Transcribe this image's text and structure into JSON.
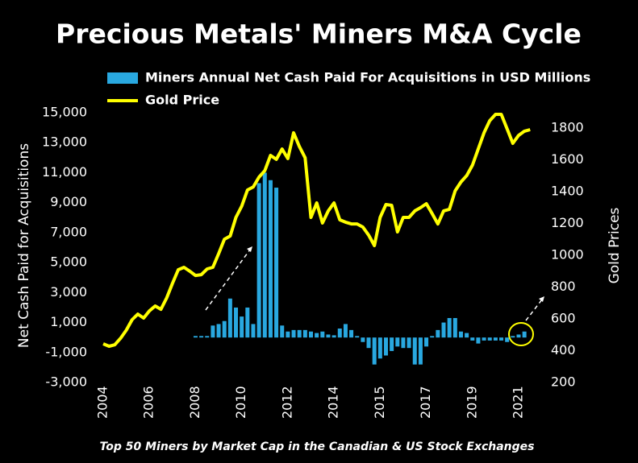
{
  "chart_data": {
    "type": "bar-line",
    "title": "Precious Metals' Miners M&A Cycle",
    "footnote": "Top 50 Miners by Market Cap in the Canadian & US Stock Exchanges",
    "y_label": "Net Cash Paid for Acquisitions",
    "y2_label": "Gold Prices",
    "categories": [
      "2004",
      null,
      null,
      null,
      null,
      null,
      null,
      null,
      "2006",
      null,
      null,
      null,
      null,
      null,
      null,
      null,
      "2008",
      null,
      null,
      null,
      null,
      null,
      null,
      null,
      "2010",
      null,
      null,
      null,
      null,
      null,
      null,
      null,
      "2012",
      null,
      null,
      null,
      null,
      null,
      null,
      null,
      "2014",
      null,
      null,
      null,
      null,
      null,
      null,
      null,
      "2015",
      null,
      null,
      null,
      null,
      null,
      null,
      null,
      "2017",
      null,
      null,
      null,
      null,
      null,
      null,
      null,
      "2019",
      null,
      null,
      null,
      null,
      null,
      null,
      null,
      "2021",
      null,
      null
    ],
    "series": [
      {
        "name": "Miners Annual Net Cash Paid For Acquisitions in USD Millions",
        "type": "bar",
        "color": "#29a8e0",
        "axis": "y",
        "values": [
          null,
          null,
          null,
          null,
          null,
          null,
          null,
          null,
          null,
          null,
          null,
          null,
          null,
          null,
          null,
          null,
          100,
          100,
          100,
          800,
          900,
          1100,
          2600,
          2000,
          1400,
          2000,
          900,
          10300,
          11000,
          10500,
          10000,
          800,
          400,
          500,
          500,
          500,
          400,
          300,
          400,
          200,
          150,
          600,
          900,
          500,
          100,
          -300,
          -700,
          -1800,
          -1400,
          -1200,
          -900,
          -600,
          -700,
          -700,
          -1800,
          -1800,
          -600,
          100,
          500,
          1000,
          1300,
          1300,
          400,
          300,
          -200,
          -400,
          -200,
          -200,
          -200,
          -200,
          -300,
          100,
          200,
          400,
          null
        ]
      },
      {
        "name": "Gold Price",
        "type": "line",
        "color": "#ffff00",
        "axis": "y2",
        "values": [
          443,
          428,
          437,
          478,
          529,
          595,
          630,
          605,
          650,
          681,
          660,
          732,
          823,
          909,
          924,
          900,
          873,
          878,
          914,
          924,
          1010,
          1101,
          1121,
          1238,
          1309,
          1410,
          1430,
          1491,
          1532,
          1628,
          1603,
          1668,
          1608,
          1770,
          1683,
          1613,
          1238,
          1329,
          1203,
          1279,
          1329,
          1223,
          1208,
          1197,
          1197,
          1177,
          1127,
          1061,
          1238,
          1319,
          1314,
          1147,
          1238,
          1238,
          1279,
          1299,
          1324,
          1263,
          1197,
          1279,
          1289,
          1405,
          1461,
          1501,
          1567,
          1668,
          1770,
          1846,
          1886,
          1886,
          1795,
          1704,
          1754,
          1780,
          1790
        ]
      }
    ],
    "ylim": [
      -3000,
      15000
    ],
    "yticks": [
      {
        "value": -3000,
        "label": "-3,000"
      },
      {
        "value": -1000,
        "label": "-1,000"
      },
      {
        "value": 1000,
        "label": "1,000"
      },
      {
        "value": 3000,
        "label": "3,000"
      },
      {
        "value": 5000,
        "label": "5,000"
      },
      {
        "value": 7000,
        "label": "7,000"
      },
      {
        "value": 9000,
        "label": "9,000"
      },
      {
        "value": 11000,
        "label": "11,000"
      },
      {
        "value": 13000,
        "label": "13,000"
      },
      {
        "value": 15000,
        "label": "15,000"
      }
    ],
    "y2lim": [
      200,
      1800
    ],
    "y2ticks": [
      200,
      400,
      600,
      800,
      1000,
      1200,
      1400,
      1600,
      1800
    ]
  }
}
